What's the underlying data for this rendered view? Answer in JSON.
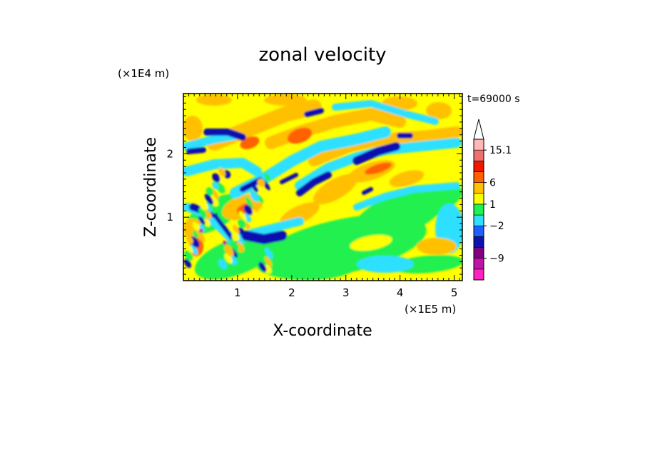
{
  "chart_data": {
    "type": "heatmap",
    "title": "zonal velocity",
    "xlabel": "X-coordinate",
    "ylabel": "Z-coordinate",
    "x_unit": "(×1E5 m)",
    "y_unit": "(×1E4 m)",
    "time_label": "t=69000 s",
    "xlim": [
      0,
      5.15
    ],
    "ylim": [
      0,
      2.95
    ],
    "x_ticks": [
      1,
      2,
      3,
      4,
      5
    ],
    "y_ticks": [
      1,
      2
    ],
    "colorbar": {
      "levels": [
        {
          "color": "#ff20c0"
        },
        {
          "color": "#c014a8"
        },
        {
          "color": "#800080"
        },
        {
          "color": "#1010b0"
        },
        {
          "color": "#1e60ff"
        },
        {
          "color": "#2ee0ff"
        },
        {
          "color": "#20f050"
        },
        {
          "color": "#ffff00"
        },
        {
          "color": "#ffc000"
        },
        {
          "color": "#ff6000"
        },
        {
          "color": "#ee1800"
        },
        {
          "color": "#f07070"
        },
        {
          "color": "#ffb8b8"
        }
      ],
      "labels": [
        "15.1",
        "6",
        "1",
        "−2",
        "−9"
      ],
      "extend_max": true
    }
  }
}
